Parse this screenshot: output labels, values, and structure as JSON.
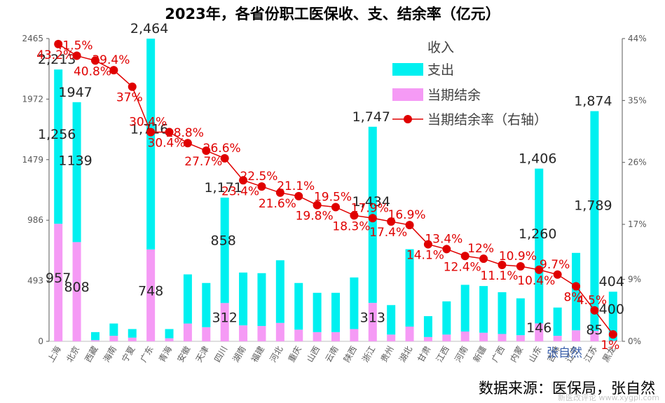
{
  "title": "2023年，各省份职工医保收、支、结余率（亿元）",
  "source": "数据来源：医保局，张自然",
  "watermark": "新医改评论 www.xygpl.com",
  "author_mark": "张自然",
  "colors": {
    "expense": "#00f0f0",
    "balance": "#f59af5",
    "rate": "#e00000",
    "label_dark": "#262626",
    "axis": "#595959"
  },
  "chart_data": {
    "type": "bar",
    "stacked": true,
    "categories": [
      "上海",
      "北京",
      "西藏",
      "海南",
      "宁夏",
      "广东",
      "青海",
      "安徽",
      "天津",
      "四川",
      "湖南",
      "福建",
      "河北",
      "重庆",
      "山西",
      "云南",
      "陕西",
      "浙江",
      "贵州",
      "湖北",
      "甘肃",
      "江西",
      "河南",
      "新疆",
      "广西",
      "内蒙",
      "山东",
      "吉林",
      "辽宁",
      "江苏",
      "黑龙"
    ],
    "series": [
      {
        "name": "支出",
        "values": [
          1256,
          1139,
          65,
          100,
          70,
          1716,
          75,
          400,
          360,
          858,
          430,
          430,
          510,
          380,
          320,
          320,
          420,
          1434,
          240,
          630,
          170,
          270,
          380,
          380,
          340,
          300,
          1260,
          230,
          630,
          1789,
          400
        ]
      },
      {
        "name": "当期结余",
        "values": [
          957,
          808,
          10,
          45,
          30,
          748,
          25,
          145,
          115,
          312,
          130,
          125,
          150,
          95,
          75,
          75,
          100,
          313,
          55,
          120,
          35,
          55,
          80,
          70,
          60,
          50,
          146,
          45,
          90,
          85,
          4
        ]
      }
    ],
    "line": {
      "name": "当期结余率（右轴）",
      "axis": "right",
      "values": [
        43.2,
        41.5,
        40.8,
        39.4,
        37.0,
        30.4,
        30.4,
        28.8,
        27.7,
        26.6,
        23.4,
        22.5,
        21.6,
        21.1,
        19.8,
        19.5,
        18.3,
        17.9,
        17.4,
        16.9,
        14.1,
        13.4,
        12.4,
        12.0,
        11.1,
        10.9,
        10.4,
        9.7,
        8.0,
        4.5,
        1.0
      ],
      "labels": [
        "43.2%",
        "41.5%",
        "40.8%",
        "39.4%",
        "37%",
        "30.4%",
        "30.4%",
        "28.8%",
        "27.7%",
        "26.6%",
        "23.4%",
        "22.5%",
        "21.6%",
        "21.1%",
        "19.8%",
        "19.5%",
        "18.3%",
        "17.9%",
        "17.4%",
        "16.9%",
        "14.1%",
        "13.4%",
        "12.4%",
        "12%",
        "11.1%",
        "10.9%",
        "10.4%",
        "9.7%",
        "8%",
        "4.5%",
        "1%"
      ]
    },
    "legend": {
      "items": [
        "收入",
        "支出",
        "当期结余",
        "当期结余率（右轴）"
      ],
      "position": "top-right"
    },
    "y_left": {
      "ylim": [
        0,
        2465
      ],
      "ticks": [
        0,
        493,
        986,
        1479,
        1972,
        2465
      ]
    },
    "y_right": {
      "ylim": [
        0,
        44
      ],
      "ticks": [
        "0%",
        "9%",
        "17%",
        "26%",
        "35%",
        "44%"
      ]
    },
    "data_labels": [
      {
        "category": "上海",
        "total": "2,213",
        "expense": "1,256",
        "balance": "957"
      },
      {
        "category": "北京",
        "total": "1947",
        "expense": "1139",
        "balance": "808"
      },
      {
        "category": "广东",
        "total": "2,464",
        "expense": "1,716",
        "balance": "748"
      },
      {
        "category": "四川",
        "total": "1,171",
        "expense": "858",
        "balance": "312"
      },
      {
        "category": "浙江",
        "total": "1,747",
        "expense": "1,434",
        "balance": "313"
      },
      {
        "category": "山东",
        "total": "1,406",
        "expense": "1,260",
        "balance": "146"
      },
      {
        "category": "江苏",
        "total": "1,874",
        "expense": "1,789",
        "balance": "85"
      },
      {
        "category": "黑龙",
        "total": "404",
        "expense": "400",
        "balance": ""
      }
    ],
    "grid": false
  }
}
